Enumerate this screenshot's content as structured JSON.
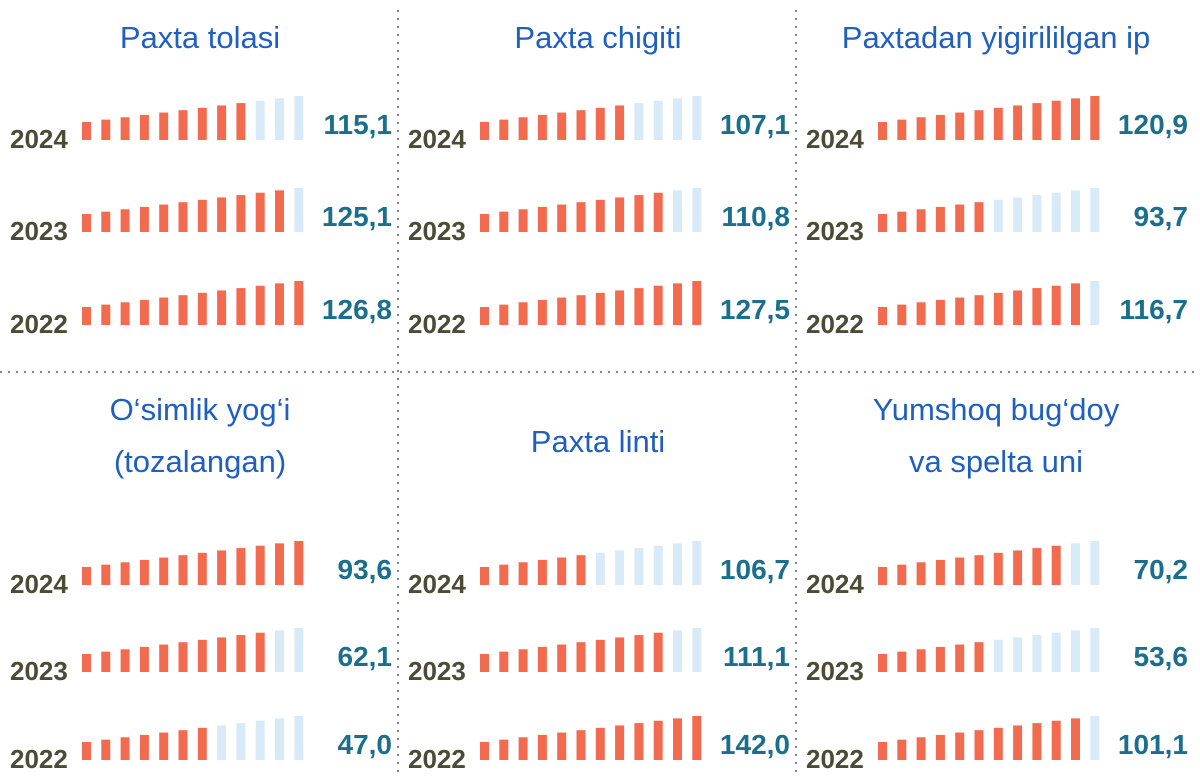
{
  "bars_per_gauge": 12,
  "filled_color": "#f26b4f",
  "empty_color": "#d8e9f8",
  "panels": [
    {
      "title": [
        "Paxta tolasi"
      ],
      "rows": [
        {
          "year": "2024",
          "value": "115,1",
          "filled_bars": 9
        },
        {
          "year": "2023",
          "value": "125,1",
          "filled_bars": 11
        },
        {
          "year": "2022",
          "value": "126,8",
          "filled_bars": 12
        }
      ]
    },
    {
      "title": [
        "Paxta chigiti"
      ],
      "rows": [
        {
          "year": "2024",
          "value": "107,1",
          "filled_bars": 8
        },
        {
          "year": "2023",
          "value": "110,8",
          "filled_bars": 10
        },
        {
          "year": "2022",
          "value": "127,5",
          "filled_bars": 12
        }
      ]
    },
    {
      "title": [
        "Paxtadan yigirililgan ip"
      ],
      "rows": [
        {
          "year": "2024",
          "value": "120,9",
          "filled_bars": 12
        },
        {
          "year": "2023",
          "value": "93,7",
          "filled_bars": 6
        },
        {
          "year": "2022",
          "value": "116,7",
          "filled_bars": 11
        }
      ]
    },
    {
      "title": [
        "O‘simlik yog‘i",
        "(tozalangan)"
      ],
      "rows": [
        {
          "year": "2024",
          "value": "93,6",
          "filled_bars": 12
        },
        {
          "year": "2023",
          "value": "62,1",
          "filled_bars": 10
        },
        {
          "year": "2022",
          "value": "47,0",
          "filled_bars": 7
        }
      ]
    },
    {
      "title": [
        "Paxta linti"
      ],
      "rows": [
        {
          "year": "2024",
          "value": "106,7",
          "filled_bars": 6
        },
        {
          "year": "2023",
          "value": "111,1",
          "filled_bars": 10
        },
        {
          "year": "2022",
          "value": "142,0",
          "filled_bars": 12
        }
      ]
    },
    {
      "title": [
        "Yumshoq bug‘doy",
        "va spelta uni"
      ],
      "rows": [
        {
          "year": "2024",
          "value": "70,2",
          "filled_bars": 10
        },
        {
          "year": "2023",
          "value": "53,6",
          "filled_bars": 6
        },
        {
          "year": "2022",
          "value": "101,1",
          "filled_bars": 11
        }
      ]
    }
  ]
}
